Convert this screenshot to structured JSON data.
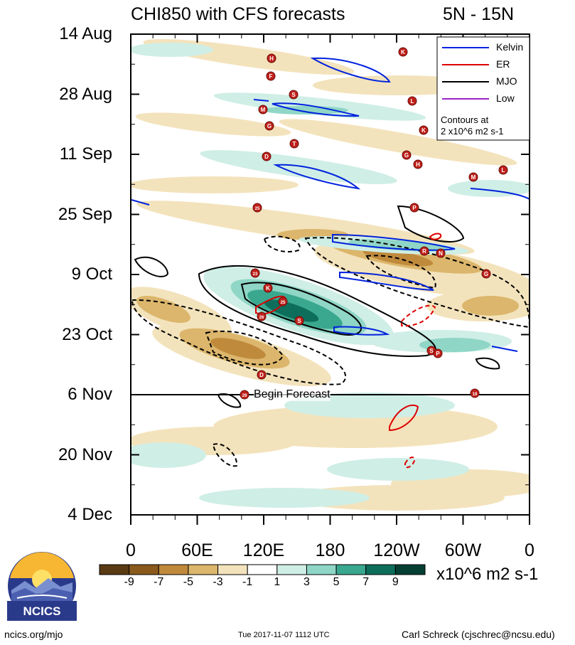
{
  "chart_data": {
    "type": "heatmap",
    "title_left": "CHI850 with CFS forecasts",
    "title_right": "5N - 15N",
    "y_ticks": [
      "14 Aug",
      "28 Aug",
      "11 Sep",
      "25 Sep",
      "9 Oct",
      "23 Oct",
      "6 Nov",
      "20 Nov",
      "4 Dec"
    ],
    "x_ticks": [
      "0",
      "60E",
      "120E",
      "180",
      "120W",
      "60W",
      "0"
    ],
    "legend": [
      {
        "label": "Kelvin",
        "color": "#0022dd"
      },
      {
        "label": "ER",
        "color": "#dd0000"
      },
      {
        "label": "MJO",
        "color": "#000000"
      },
      {
        "label": "Low",
        "color": "#9922cc"
      }
    ],
    "contour_note_1": "Contours at",
    "contour_note_2": "2 x10^6 m2 s-1",
    "forecast_label": "Begin Forecast",
    "colorbar": {
      "levels": [
        "-9",
        "-7",
        "-5",
        "-3",
        "-1",
        "1",
        "3",
        "5",
        "7",
        "9"
      ],
      "colors": [
        "#5a3a12",
        "#8a5a1c",
        "#c08a3c",
        "#dcb66c",
        "#f3e3bc",
        "#ffffff",
        "#cfeee6",
        "#8fd6c6",
        "#3aa88e",
        "#0e6e5c",
        "#053f33"
      ],
      "units": "x10^6 m2 s-1"
    }
  },
  "storm_markers": [
    "H",
    "F",
    "S",
    "M",
    "G",
    "D",
    "T",
    "K",
    "L",
    "K",
    "G",
    "H",
    "M",
    "L",
    "P",
    "R",
    "N",
    "G",
    "23",
    "K",
    "25",
    "26",
    "S",
    "S",
    "P",
    "D",
    "29",
    "19",
    "25"
  ],
  "logo": {
    "text": "NCICS"
  },
  "footer": {
    "left": "ncics.org/mjo",
    "center": "Tue 2017-11-07 1112 UTC",
    "right": "Carl Schreck (cjschrec@ncsu.edu)"
  }
}
